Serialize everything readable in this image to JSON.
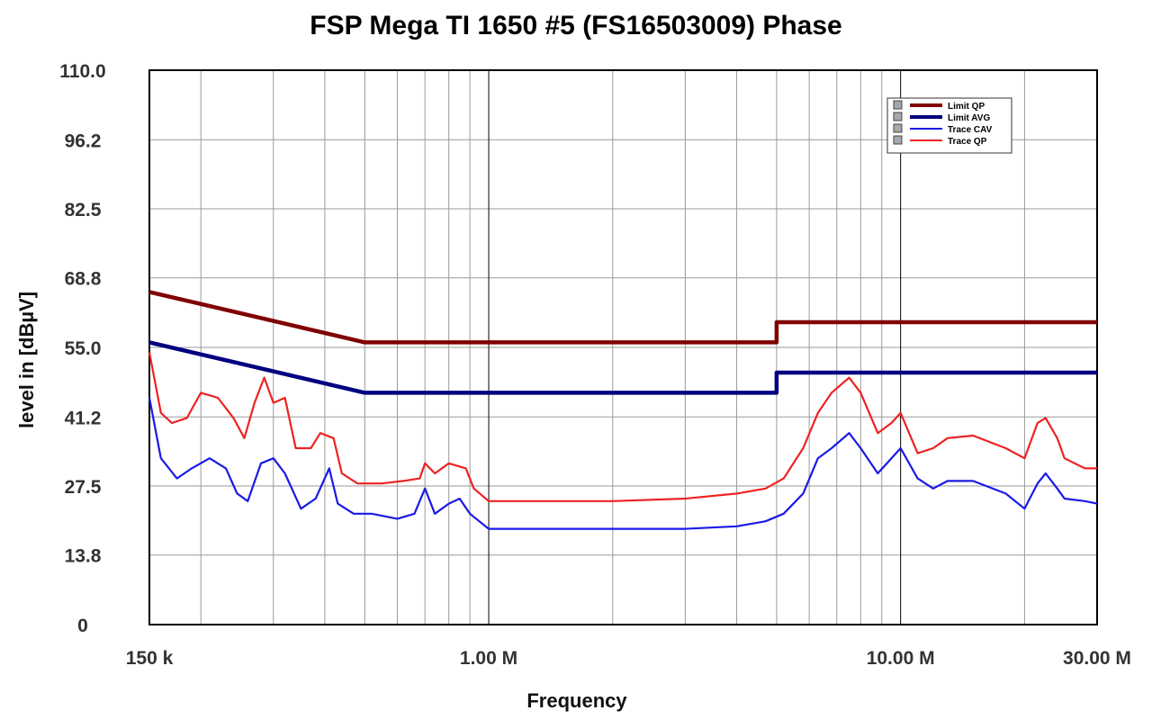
{
  "chart_data": {
    "type": "line",
    "title": "FSP Mega TI 1650 #5 (FS16503009) Phase",
    "xlabel": "Frequency",
    "ylabel": "level in [dBµV]",
    "x_scale": "log",
    "xlim": [
      150000,
      30000000
    ],
    "ylim": [
      0,
      110
    ],
    "y_ticks": [
      0,
      13.8,
      27.5,
      41.2,
      55.0,
      68.8,
      82.5,
      96.2,
      110.0
    ],
    "y_tick_labels": [
      "0",
      "13.8",
      "27.5",
      "41.2",
      "55.0",
      "68.8",
      "82.5",
      "96.2",
      "110.0"
    ],
    "x_tick_labels": [
      {
        "x": 150000,
        "label": "150 k"
      },
      {
        "x": 1000000,
        "label": "1.00 M"
      },
      {
        "x": 10000000,
        "label": "10.00 M"
      },
      {
        "x": 30000000,
        "label": "30.00 M"
      }
    ],
    "grid": true,
    "legend_position": "top-right",
    "series": [
      {
        "name": "Limit QP",
        "color": "#800000",
        "points": [
          [
            150000,
            66
          ],
          [
            500000,
            56
          ],
          [
            5000000,
            56
          ],
          [
            5000000,
            60
          ],
          [
            30000000,
            60
          ]
        ]
      },
      {
        "name": "Limit AVG",
        "color": "#000080",
        "points": [
          [
            150000,
            56
          ],
          [
            500000,
            46
          ],
          [
            5000000,
            46
          ],
          [
            5000000,
            50
          ],
          [
            30000000,
            50
          ]
        ]
      },
      {
        "name": "Trace CAV",
        "color": "#1a1ae6",
        "points": [
          [
            150000,
            45
          ],
          [
            160000,
            33
          ],
          [
            175000,
            29
          ],
          [
            190000,
            31
          ],
          [
            210000,
            33
          ],
          [
            230000,
            31
          ],
          [
            245000,
            26
          ],
          [
            260000,
            24.5
          ],
          [
            280000,
            32
          ],
          [
            300000,
            33
          ],
          [
            320000,
            30
          ],
          [
            350000,
            23
          ],
          [
            380000,
            25
          ],
          [
            410000,
            31
          ],
          [
            430000,
            24
          ],
          [
            470000,
            22
          ],
          [
            520000,
            22
          ],
          [
            600000,
            21
          ],
          [
            660000,
            22
          ],
          [
            700000,
            27
          ],
          [
            740000,
            22
          ],
          [
            800000,
            24
          ],
          [
            850000,
            25
          ],
          [
            900000,
            22
          ],
          [
            1000000,
            19
          ],
          [
            1200000,
            19
          ],
          [
            1500000,
            19
          ],
          [
            2000000,
            19
          ],
          [
            3000000,
            19
          ],
          [
            4000000,
            19.5
          ],
          [
            4700000,
            20.5
          ],
          [
            5200000,
            22
          ],
          [
            5800000,
            26
          ],
          [
            6300000,
            33
          ],
          [
            6800000,
            35
          ],
          [
            7500000,
            38
          ],
          [
            8000000,
            35
          ],
          [
            8800000,
            30
          ],
          [
            9500000,
            33
          ],
          [
            10000000,
            35
          ],
          [
            11000000,
            29
          ],
          [
            12000000,
            27
          ],
          [
            13000000,
            28.5
          ],
          [
            15000000,
            28.5
          ],
          [
            18000000,
            26
          ],
          [
            20000000,
            23
          ],
          [
            21500000,
            28
          ],
          [
            22500000,
            30
          ],
          [
            24000000,
            27
          ],
          [
            25000000,
            25
          ],
          [
            28000000,
            24.5
          ],
          [
            30000000,
            24
          ]
        ]
      },
      {
        "name": "Trace QP",
        "color": "#ee2222",
        "points": [
          [
            150000,
            54
          ],
          [
            160000,
            42
          ],
          [
            170000,
            40
          ],
          [
            185000,
            41
          ],
          [
            200000,
            46
          ],
          [
            220000,
            45
          ],
          [
            240000,
            41
          ],
          [
            255000,
            37
          ],
          [
            270000,
            44
          ],
          [
            285000,
            49
          ],
          [
            300000,
            44
          ],
          [
            320000,
            45
          ],
          [
            340000,
            35
          ],
          [
            370000,
            35
          ],
          [
            390000,
            38
          ],
          [
            420000,
            37
          ],
          [
            440000,
            30
          ],
          [
            480000,
            28
          ],
          [
            550000,
            28
          ],
          [
            620000,
            28.5
          ],
          [
            680000,
            29
          ],
          [
            700000,
            32
          ],
          [
            740000,
            30
          ],
          [
            800000,
            32
          ],
          [
            880000,
            31
          ],
          [
            920000,
            27
          ],
          [
            1000000,
            24.5
          ],
          [
            1200000,
            24.5
          ],
          [
            1500000,
            24.5
          ],
          [
            2000000,
            24.5
          ],
          [
            3000000,
            25
          ],
          [
            4000000,
            26
          ],
          [
            4700000,
            27
          ],
          [
            5200000,
            29
          ],
          [
            5800000,
            35
          ],
          [
            6300000,
            42
          ],
          [
            6800000,
            46
          ],
          [
            7500000,
            49
          ],
          [
            8000000,
            46
          ],
          [
            8800000,
            38
          ],
          [
            9500000,
            40
          ],
          [
            10000000,
            42
          ],
          [
            11000000,
            34
          ],
          [
            12000000,
            35
          ],
          [
            13000000,
            37
          ],
          [
            15000000,
            37.5
          ],
          [
            18000000,
            35
          ],
          [
            20000000,
            33
          ],
          [
            21500000,
            40
          ],
          [
            22500000,
            41
          ],
          [
            24000000,
            37
          ],
          [
            25000000,
            33
          ],
          [
            28000000,
            31
          ],
          [
            30000000,
            31
          ]
        ]
      }
    ]
  }
}
